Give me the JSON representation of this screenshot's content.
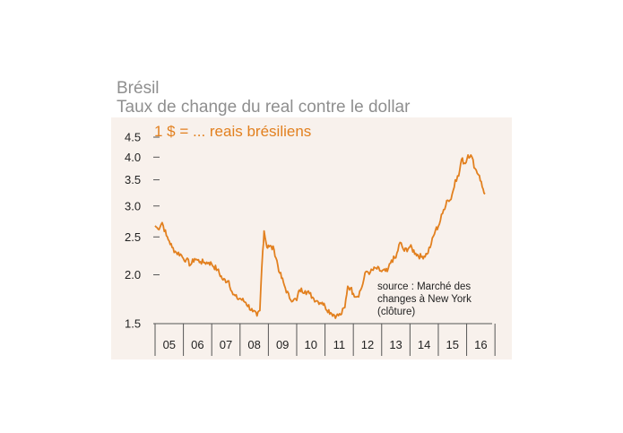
{
  "header": {
    "country": "Brésil",
    "subtitle": "Taux de change du real contre le dollar"
  },
  "chart_data": {
    "type": "line",
    "unit_label": "1 $ = ... reais brésiliens",
    "source_lines": [
      "source : Marché des",
      "changes à New York",
      "(clôture)"
    ],
    "y_scale": "log",
    "ylim": [
      1.5,
      4.5
    ],
    "yticks": [
      1.5,
      2.0,
      2.5,
      3.0,
      3.5,
      4.0,
      4.5
    ],
    "ytick_labels": [
      "1.5",
      "2.0",
      "2.5",
      "3.0",
      "3.5",
      "4.0",
      "4.5"
    ],
    "xlim": [
      2005.0,
      2016.9
    ],
    "xtick_labels": [
      "05",
      "06",
      "07",
      "08",
      "09",
      "10",
      "11",
      "12",
      "13",
      "14",
      "15",
      "16"
    ],
    "grid": false,
    "colors": {
      "line": "#e2801f",
      "background": "#f8f1ec",
      "axis": "#555555"
    },
    "series": [
      {
        "x": [
          2005.0,
          2005.1,
          2005.25,
          2005.4,
          2005.5,
          2005.6,
          2005.75,
          2005.9,
          2006.0,
          2006.1,
          2006.25,
          2006.4,
          2006.5,
          2006.6,
          2006.75,
          2006.9,
          2007.0,
          2007.2,
          2007.4,
          2007.6,
          2007.75,
          2007.9,
          2008.0,
          2008.2,
          2008.45,
          2008.6,
          2008.7,
          2008.8,
          2008.85,
          2008.95,
          2009.0,
          2009.2,
          2009.4,
          2009.6,
          2009.75,
          2009.9,
          2010.0,
          2010.1,
          2010.3,
          2010.45,
          2010.6,
          2010.75,
          2010.9,
          2011.0,
          2011.2,
          2011.4,
          2011.55,
          2011.7,
          2011.8,
          2011.9,
          2012.0,
          2012.15,
          2012.3,
          2012.45,
          2012.6,
          2012.8,
          2013.0,
          2013.2,
          2013.35,
          2013.5,
          2013.65,
          2013.8,
          2014.0,
          2014.2,
          2014.4,
          2014.6,
          2014.75,
          2014.9,
          2015.0,
          2015.15,
          2015.3,
          2015.45,
          2015.6,
          2015.72,
          2015.82,
          2015.95,
          2016.05,
          2016.15,
          2016.3,
          2016.45,
          2016.55,
          2016.65
        ],
        "y": [
          2.67,
          2.62,
          2.72,
          2.52,
          2.44,
          2.35,
          2.28,
          2.26,
          2.2,
          2.19,
          2.12,
          2.2,
          2.18,
          2.16,
          2.15,
          2.15,
          2.13,
          2.06,
          1.94,
          1.93,
          1.78,
          1.74,
          1.74,
          1.7,
          1.61,
          1.57,
          1.62,
          2.3,
          2.59,
          2.35,
          2.38,
          2.32,
          2.02,
          1.85,
          1.74,
          1.73,
          1.72,
          1.83,
          1.82,
          1.79,
          1.74,
          1.71,
          1.7,
          1.66,
          1.6,
          1.57,
          1.58,
          1.65,
          1.87,
          1.85,
          1.79,
          1.76,
          1.86,
          2.04,
          2.03,
          2.08,
          2.04,
          2.04,
          2.18,
          2.21,
          2.42,
          2.3,
          2.36,
          2.27,
          2.22,
          2.26,
          2.4,
          2.6,
          2.66,
          2.87,
          3.1,
          3.12,
          3.5,
          3.58,
          3.95,
          3.85,
          4.05,
          4.05,
          3.74,
          3.59,
          3.36,
          3.22
        ]
      }
    ]
  }
}
